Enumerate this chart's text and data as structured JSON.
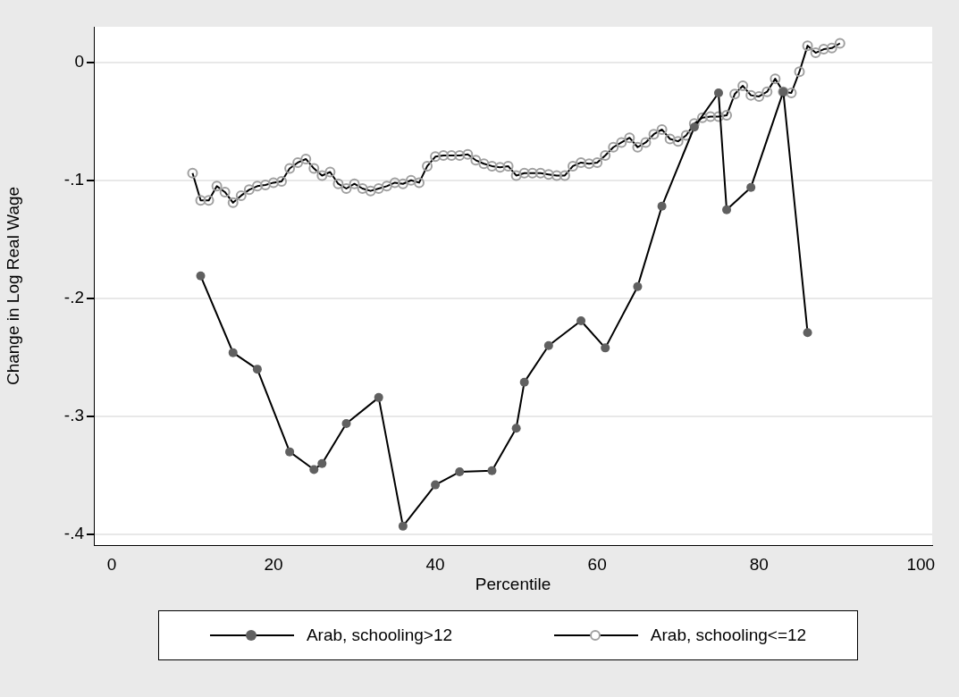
{
  "chart_data": {
    "type": "line",
    "xlabel": "Percentile",
    "ylabel": "Change in Log Real Wage",
    "xlim": [
      -2.2,
      101.4
    ],
    "xticks": [
      0,
      20,
      40,
      60,
      80,
      100
    ],
    "ylim": [
      -0.409,
      0.03
    ],
    "yticks": [
      {
        "value": 0,
        "label": "0"
      },
      {
        "value": -0.1,
        "label": "-.1"
      },
      {
        "value": -0.2,
        "label": "-.2"
      },
      {
        "value": -0.3,
        "label": "-.3"
      },
      {
        "value": -0.4,
        "label": "-.4"
      }
    ],
    "grid": "y",
    "legend": "bottom",
    "marker": "circle",
    "line_style": "solid",
    "series": [
      {
        "name": "Arab, schooling>12",
        "color": "#606060",
        "x": [
          11,
          15,
          18,
          22,
          25,
          26,
          29,
          33,
          36,
          40,
          43,
          47,
          50,
          51,
          54,
          58,
          61,
          65,
          68,
          72,
          75,
          76,
          79,
          83,
          86
        ],
        "values": [
          -0.181,
          -0.246,
          -0.26,
          -0.33,
          -0.345,
          -0.34,
          -0.306,
          -0.284,
          -0.393,
          -0.358,
          -0.347,
          -0.346,
          -0.31,
          -0.271,
          -0.24,
          -0.219,
          -0.242,
          -0.19,
          -0.122,
          -0.055,
          -0.026,
          -0.125,
          -0.106,
          -0.025,
          -0.229
        ]
      },
      {
        "name": "Arab, schooling<=12",
        "color": "#a0a0a0",
        "x": [
          10,
          11,
          12,
          13,
          14,
          15,
          16,
          17,
          18,
          19,
          20,
          21,
          22,
          23,
          24,
          25,
          26,
          27,
          28,
          29,
          30,
          31,
          32,
          33,
          34,
          35,
          36,
          37,
          38,
          39,
          40,
          41,
          42,
          43,
          44,
          45,
          46,
          47,
          48,
          49,
          50,
          51,
          52,
          53,
          54,
          55,
          56,
          57,
          58,
          59,
          60,
          61,
          62,
          63,
          64,
          65,
          66,
          67,
          68,
          69,
          70,
          71,
          72,
          73,
          74,
          75,
          76,
          77,
          78,
          79,
          80,
          81,
          82,
          83,
          84,
          85,
          86,
          87,
          88,
          89,
          90
        ],
        "values": [
          -0.094,
          -0.117,
          -0.117,
          -0.105,
          -0.11,
          -0.119,
          -0.113,
          -0.108,
          -0.105,
          -0.104,
          -0.102,
          -0.101,
          -0.09,
          -0.085,
          -0.082,
          -0.09,
          -0.096,
          -0.093,
          -0.103,
          -0.107,
          -0.103,
          -0.107,
          -0.109,
          -0.107,
          -0.105,
          -0.102,
          -0.103,
          -0.1,
          -0.102,
          -0.088,
          -0.08,
          -0.079,
          -0.079,
          -0.079,
          -0.078,
          -0.083,
          -0.086,
          -0.088,
          -0.089,
          -0.088,
          -0.096,
          -0.094,
          -0.094,
          -0.094,
          -0.095,
          -0.096,
          -0.096,
          -0.088,
          -0.085,
          -0.086,
          -0.085,
          -0.079,
          -0.072,
          -0.068,
          -0.064,
          -0.072,
          -0.068,
          -0.061,
          -0.057,
          -0.065,
          -0.067,
          -0.062,
          -0.052,
          -0.047,
          -0.046,
          -0.046,
          -0.045,
          -0.027,
          -0.02,
          -0.028,
          -0.029,
          -0.025,
          -0.014,
          -0.025,
          -0.026,
          -0.008,
          0.014,
          0.008,
          0.011,
          0.012,
          0.016
        ]
      }
    ]
  }
}
